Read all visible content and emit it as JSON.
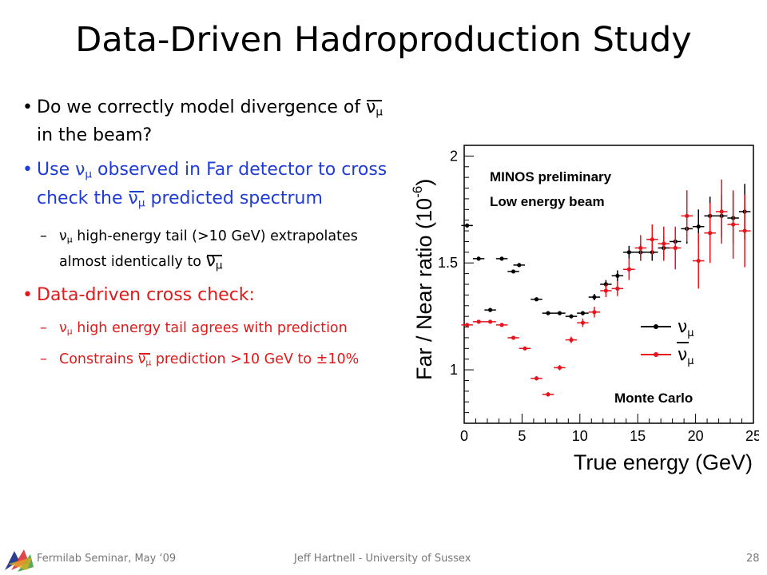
{
  "slide": {
    "title": "Data-Driven Hadroproduction Study",
    "bullets": {
      "b1": {
        "bullet": "•",
        "text_a": "Do we correctly model divergence of ",
        "nu": "ν",
        "sub": "μ",
        "text_b": " in the beam?"
      },
      "b2": {
        "bullet": "•",
        "text_a": "Use ν",
        "sub_a": "μ",
        "text_b": " observed in Far detector to cross check the ",
        "nu": "ν",
        "sub_b": "μ",
        "text_c": " predicted spectrum"
      },
      "b2a": {
        "dash": "–",
        "text_a": "ν",
        "sub_a": "μ",
        "text_b": " high-energy tail (>10 GeV) extrapolates almost identically to ",
        "nu": "ν",
        "sub_b": "μ"
      },
      "b3": {
        "bullet": "•",
        "text": "Data-driven cross check:"
      },
      "b3a": {
        "dash": "–",
        "text_a": "ν",
        "sub_a": "μ",
        "text_b": " high energy tail agrees with prediction"
      },
      "b3b": {
        "dash": "–",
        "text_a": "Constrains ",
        "nu": "ν",
        "sub": "μ",
        "text_b": " prediction >10 GeV to ±10%"
      }
    },
    "colors": {
      "blue_text": "#1f3cd6",
      "red_text": "#e01a1a",
      "numu": "#000000",
      "numubar": "#e8141b"
    }
  },
  "footer": {
    "left": "Fermilab Seminar, May ‘09",
    "center": "Jeff Hartnell - University of Sussex",
    "page": "28"
  },
  "chart_data": {
    "type": "scatter",
    "xlabel": "True energy (GeV)",
    "ylabel": "Far / Near ratio (10",
    "ylabel_exp": "-6",
    "ylabel_close": ")",
    "xlim": [
      0,
      25
    ],
    "ylim": [
      0.75,
      2.05
    ],
    "xticks": [
      0,
      5,
      10,
      15,
      20,
      25
    ],
    "yticks": [
      1,
      1.5,
      2
    ],
    "annotations": [
      "MINOS preliminary",
      "Low energy beam",
      "Monte Carlo"
    ],
    "legend_position": "right",
    "series": [
      {
        "name_nu": "ν",
        "name_sub": "μ",
        "bar": false,
        "color": "#000000",
        "points": [
          {
            "x": 0.25,
            "y": 1.675,
            "e": 0.005
          },
          {
            "x": 1.25,
            "y": 1.52,
            "e": 0.005
          },
          {
            "x": 2.25,
            "y": 1.28,
            "e": 0.005
          },
          {
            "x": 3.25,
            "y": 1.52,
            "e": 0.005
          },
          {
            "x": 4.25,
            "y": 1.46,
            "e": 0.005
          },
          {
            "x": 4.75,
            "y": 1.49,
            "e": 0.005
          },
          {
            "x": 6.25,
            "y": 1.33,
            "e": 0.005
          },
          {
            "x": 7.25,
            "y": 1.265,
            "e": 0.006
          },
          {
            "x": 8.25,
            "y": 1.265,
            "e": 0.006
          },
          {
            "x": 9.25,
            "y": 1.25,
            "e": 0.008
          },
          {
            "x": 10.25,
            "y": 1.265,
            "e": 0.01
          },
          {
            "x": 11.25,
            "y": 1.34,
            "e": 0.015
          },
          {
            "x": 12.25,
            "y": 1.4,
            "e": 0.02
          },
          {
            "x": 13.25,
            "y": 1.44,
            "e": 0.025
          },
          {
            "x": 14.25,
            "y": 1.55,
            "e": 0.03
          },
          {
            "x": 15.25,
            "y": 1.55,
            "e": 0.04
          },
          {
            "x": 16.25,
            "y": 1.55,
            "e": 0.04
          },
          {
            "x": 17.25,
            "y": 1.57,
            "e": 0.05
          },
          {
            "x": 18.25,
            "y": 1.6,
            "e": 0.06
          },
          {
            "x": 19.25,
            "y": 1.66,
            "e": 0.07
          },
          {
            "x": 20.25,
            "y": 1.67,
            "e": 0.08
          },
          {
            "x": 21.25,
            "y": 1.72,
            "e": 0.09
          },
          {
            "x": 22.25,
            "y": 1.72,
            "e": 0.1
          },
          {
            "x": 23.25,
            "y": 1.71,
            "e": 0.12
          },
          {
            "x": 24.25,
            "y": 1.74,
            "e": 0.13
          }
        ]
      },
      {
        "name_nu": "ν",
        "name_sub": "μ",
        "bar": true,
        "color": "#e8141b",
        "points": [
          {
            "x": 0.25,
            "y": 1.21,
            "e": 0.005
          },
          {
            "x": 1.25,
            "y": 1.225,
            "e": 0.005
          },
          {
            "x": 2.25,
            "y": 1.225,
            "e": 0.005
          },
          {
            "x": 3.25,
            "y": 1.21,
            "e": 0.005
          },
          {
            "x": 4.25,
            "y": 1.15,
            "e": 0.006
          },
          {
            "x": 5.25,
            "y": 1.1,
            "e": 0.008
          },
          {
            "x": 6.25,
            "y": 0.96,
            "e": 0.01
          },
          {
            "x": 7.25,
            "y": 0.885,
            "e": 0.01
          },
          {
            "x": 8.25,
            "y": 1.01,
            "e": 0.012
          },
          {
            "x": 9.25,
            "y": 1.14,
            "e": 0.015
          },
          {
            "x": 10.25,
            "y": 1.22,
            "e": 0.02
          },
          {
            "x": 11.25,
            "y": 1.27,
            "e": 0.025
          },
          {
            "x": 12.25,
            "y": 1.37,
            "e": 0.03
          },
          {
            "x": 13.25,
            "y": 1.38,
            "e": 0.035
          },
          {
            "x": 14.25,
            "y": 1.47,
            "e": 0.05
          },
          {
            "x": 15.25,
            "y": 1.57,
            "e": 0.06
          },
          {
            "x": 16.25,
            "y": 1.61,
            "e": 0.07
          },
          {
            "x": 17.25,
            "y": 1.59,
            "e": 0.08
          },
          {
            "x": 18.25,
            "y": 1.57,
            "e": 0.1
          },
          {
            "x": 19.25,
            "y": 1.72,
            "e": 0.12
          },
          {
            "x": 20.25,
            "y": 1.51,
            "e": 0.13
          },
          {
            "x": 21.25,
            "y": 1.64,
            "e": 0.14
          },
          {
            "x": 22.25,
            "y": 1.74,
            "e": 0.15
          },
          {
            "x": 23.25,
            "y": 1.68,
            "e": 0.16
          },
          {
            "x": 24.25,
            "y": 1.65,
            "e": 0.17
          }
        ]
      }
    ]
  }
}
